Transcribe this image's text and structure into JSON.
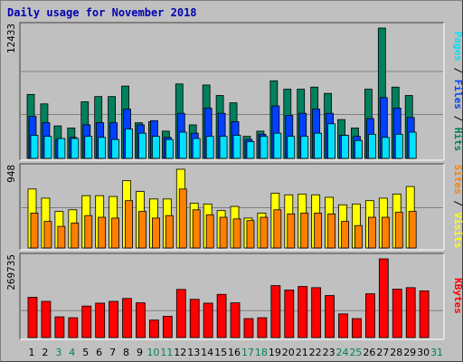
{
  "title": "Daily usage for November 2018",
  "colors": {
    "hits": "#00805c",
    "files": "#0040ff",
    "pages": "#00e0ff",
    "visits": "#ffff00",
    "sites": "#ff8000",
    "kbytes": "#ff0000",
    "weekend_label": "#00805c",
    "weekday_label": "#000000",
    "plot_bg": "#c0c0c0",
    "grid": "#808080"
  },
  "chart_data": [
    {
      "type": "bar",
      "panel": "hits-files-pages",
      "ymax_label": "12433",
      "ylim": [
        0,
        12433
      ],
      "right_labels": [
        {
          "text": "Pages",
          "color": "#00e0ff"
        },
        {
          "text": " / ",
          "color": "#000000"
        },
        {
          "text": "Files",
          "color": "#0040ff"
        },
        {
          "text": " / ",
          "color": "#000000"
        },
        {
          "text": "Hits",
          "color": "#00805c"
        }
      ],
      "series": [
        {
          "name": "Hits",
          "values": [
            6100,
            5200,
            3100,
            2900,
            5400,
            5900,
            5900,
            6900,
            3400,
            3500,
            2600,
            7100,
            3200,
            7000,
            6000,
            5300,
            2100,
            2600,
            7400,
            6600,
            6600,
            6800,
            6200,
            3700,
            2900,
            6600,
            12433,
            6800,
            6000,
            0
          ]
        },
        {
          "name": "Files",
          "values": [
            4000,
            3400,
            1800,
            2000,
            3200,
            3400,
            3400,
            4700,
            3200,
            3600,
            2000,
            4300,
            2400,
            4800,
            4300,
            3500,
            1800,
            2300,
            5000,
            4100,
            4300,
            4700,
            4300,
            2200,
            2100,
            3800,
            5800,
            4800,
            3900,
            0
          ]
        },
        {
          "name": "Pages",
          "values": [
            2200,
            2100,
            1900,
            1900,
            2100,
            2000,
            1800,
            2800,
            2400,
            2100,
            1800,
            2500,
            1900,
            2100,
            2100,
            2200,
            1600,
            2100,
            2400,
            2100,
            2100,
            2400,
            3300,
            2200,
            1700,
            2300,
            2000,
            2300,
            2500,
            0
          ]
        }
      ]
    },
    {
      "type": "bar",
      "panel": "visits-sites",
      "ymax_label": "948",
      "ylim": [
        0,
        948
      ],
      "right_labels": [
        {
          "text": "Sites",
          "color": "#ff8000"
        },
        {
          "text": " / ",
          "color": "#000000"
        },
        {
          "text": "Visits",
          "color": "#ffff00"
        }
      ],
      "series": [
        {
          "name": "Visits",
          "values": [
            710,
            600,
            440,
            460,
            630,
            630,
            620,
            810,
            680,
            590,
            590,
            948,
            540,
            530,
            450,
            500,
            360,
            420,
            660,
            640,
            650,
            640,
            610,
            520,
            530,
            570,
            600,
            650,
            740,
            0
          ]
        },
        {
          "name": "Sites",
          "values": [
            420,
            320,
            260,
            300,
            390,
            370,
            360,
            570,
            440,
            360,
            390,
            710,
            460,
            400,
            370,
            350,
            330,
            370,
            460,
            410,
            420,
            420,
            410,
            320,
            270,
            370,
            370,
            430,
            440,
            0
          ]
        }
      ]
    },
    {
      "type": "bar",
      "panel": "kbytes",
      "ymax_label": "269735",
      "ylim": [
        0,
        269735
      ],
      "right_labels": [
        {
          "text": "KBytes",
          "color": "#ff0000"
        }
      ],
      "series": [
        {
          "name": "KBytes",
          "values": [
            138000,
            124000,
            71000,
            68000,
            108000,
            118000,
            124000,
            134000,
            119000,
            60000,
            73000,
            165000,
            131000,
            118000,
            148000,
            119000,
            65000,
            68000,
            178000,
            163000,
            175000,
            171000,
            144000,
            81000,
            65000,
            150000,
            269735,
            166000,
            171000,
            160000
          ]
        }
      ]
    }
  ],
  "days": [
    "1",
    "2",
    "3",
    "4",
    "5",
    "6",
    "7",
    "8",
    "9",
    "10",
    "11",
    "12",
    "13",
    "14",
    "15",
    "16",
    "17",
    "18",
    "19",
    "20",
    "21",
    "22",
    "23",
    "24",
    "25",
    "26",
    "27",
    "28",
    "29",
    "30",
    "31"
  ],
  "weekend_days": [
    "3",
    "4",
    "10",
    "11",
    "17",
    "18",
    "24",
    "25",
    "31"
  ]
}
